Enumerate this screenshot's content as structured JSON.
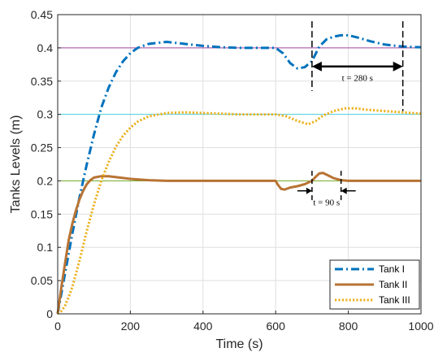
{
  "chart_data": {
    "type": "line",
    "title": "",
    "xlabel": "Time (s)",
    "ylabel": "Tanks Levels (m)",
    "xlim": [
      0,
      1000
    ],
    "ylim": [
      0,
      0.45
    ],
    "xticks": [
      0,
      200,
      400,
      600,
      800,
      1000
    ],
    "xtick_labels": [
      "0",
      "200",
      "400",
      "600",
      "800",
      "1000"
    ],
    "yticks": [
      0,
      0.05,
      0.1,
      0.15,
      0.2,
      0.25,
      0.3,
      0.35,
      0.4,
      0.45
    ],
    "ytick_labels": [
      "0",
      "0.05",
      "0.1",
      "0.15",
      "0.2",
      "0.25",
      "0.3",
      "0.35",
      "0.4",
      "0.45"
    ],
    "grid": true,
    "legend_position": "bottom-right",
    "setpoints": [
      {
        "y": 0.4,
        "color": "#a349a4"
      },
      {
        "y": 0.3,
        "color": "#4dd0e1"
      },
      {
        "y": 0.2,
        "color": "#77ac30"
      }
    ],
    "series": [
      {
        "name": "Tank I",
        "color": "#0072bd",
        "style": "dashdot",
        "x": [
          0,
          20,
          40,
          60,
          80,
          100,
          120,
          140,
          160,
          180,
          200,
          220,
          250,
          300,
          350,
          400,
          450,
          500,
          550,
          600,
          620,
          640,
          660,
          680,
          700,
          720,
          740,
          760,
          780,
          800,
          830,
          860,
          900,
          950,
          1000
        ],
        "y": [
          0,
          0.06,
          0.12,
          0.175,
          0.225,
          0.27,
          0.31,
          0.34,
          0.363,
          0.38,
          0.392,
          0.4,
          0.406,
          0.409,
          0.406,
          0.403,
          0.401,
          0.4,
          0.4,
          0.4,
          0.392,
          0.377,
          0.369,
          0.371,
          0.38,
          0.402,
          0.413,
          0.417,
          0.419,
          0.419,
          0.415,
          0.41,
          0.405,
          0.402,
          0.401
        ]
      },
      {
        "name": "Tank II",
        "color": "#b87333",
        "style": "solid",
        "x": [
          0,
          10,
          20,
          30,
          40,
          50,
          60,
          70,
          80,
          90,
          100,
          120,
          140,
          170,
          200,
          250,
          300,
          400,
          500,
          600,
          605,
          615,
          625,
          640,
          660,
          680,
          700,
          710,
          720,
          730,
          745,
          760,
          780,
          800,
          850,
          900,
          1000
        ],
        "y": [
          0,
          0.04,
          0.075,
          0.11,
          0.135,
          0.155,
          0.172,
          0.185,
          0.195,
          0.201,
          0.205,
          0.207,
          0.207,
          0.205,
          0.203,
          0.201,
          0.2,
          0.2,
          0.2,
          0.2,
          0.195,
          0.188,
          0.187,
          0.19,
          0.192,
          0.195,
          0.2,
          0.206,
          0.211,
          0.212,
          0.208,
          0.204,
          0.201,
          0.2,
          0.2,
          0.2,
          0.2
        ]
      },
      {
        "name": "Tank III",
        "color": "#edb120",
        "style": "dotted",
        "x": [
          0,
          10,
          20,
          30,
          40,
          60,
          80,
          100,
          120,
          140,
          160,
          180,
          200,
          220,
          250,
          300,
          350,
          400,
          450,
          500,
          550,
          600,
          630,
          660,
          690,
          710,
          730,
          760,
          790,
          820,
          850,
          900,
          950,
          1000
        ],
        "y": [
          0,
          0.004,
          0.012,
          0.025,
          0.04,
          0.08,
          0.125,
          0.165,
          0.2,
          0.228,
          0.251,
          0.268,
          0.28,
          0.289,
          0.297,
          0.302,
          0.303,
          0.302,
          0.301,
          0.3,
          0.3,
          0.3,
          0.297,
          0.29,
          0.285,
          0.29,
          0.298,
          0.305,
          0.309,
          0.309,
          0.307,
          0.305,
          0.303,
          0.301
        ]
      }
    ],
    "annotations": [
      {
        "label": "t = 280 s",
        "t_start": 700,
        "t_end": 950,
        "arrow_y": 0.372,
        "label_y": 0.355
      },
      {
        "label": "t = 90 s",
        "t_start": 700,
        "t_end": 780,
        "arrow_y": 0.185,
        "label_y": 0.168
      }
    ]
  }
}
